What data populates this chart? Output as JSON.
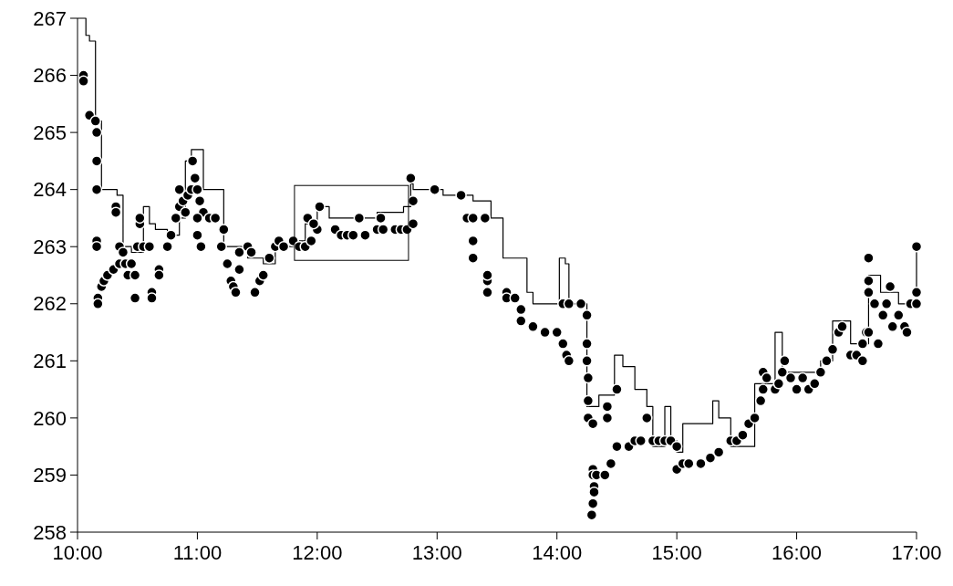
{
  "chart_data": {
    "type": "scatter",
    "xlim": [
      10,
      17
    ],
    "ylim": [
      258,
      267
    ],
    "xticks": [
      {
        "value": 10,
        "label": "10:00"
      },
      {
        "value": 11,
        "label": "11:00"
      },
      {
        "value": 12,
        "label": "12:00"
      },
      {
        "value": 13,
        "label": "13:00"
      },
      {
        "value": 14,
        "label": "14:00"
      },
      {
        "value": 15,
        "label": "15:00"
      },
      {
        "value": 16,
        "label": "16:00"
      },
      {
        "value": 17,
        "label": "17:00"
      }
    ],
    "yticks": [
      258,
      259,
      260,
      261,
      262,
      263,
      264,
      265,
      266,
      267
    ],
    "grid": false,
    "series": [
      {
        "type": "step",
        "color": "#000000",
        "line_style": "solid",
        "x": [
          10.0,
          10.07,
          10.1,
          10.15,
          10.2,
          10.33,
          10.38,
          10.45,
          10.55,
          10.6,
          10.65,
          10.75,
          10.85,
          10.9,
          10.95,
          11.05,
          11.2,
          11.22,
          11.3,
          11.42,
          11.55,
          11.65,
          11.85,
          11.9,
          12.0,
          12.1,
          12.3,
          12.5,
          12.72,
          12.78,
          12.8,
          13.05,
          13.3,
          13.45,
          13.55,
          13.75,
          13.8,
          14.0,
          14.02,
          14.07,
          14.1,
          14.22,
          14.25,
          14.35,
          14.48,
          14.55,
          14.65,
          14.75,
          14.8,
          14.9,
          14.95,
          15.0,
          15.05,
          15.3,
          15.35,
          15.45,
          15.65,
          15.82,
          15.88,
          16.2,
          16.3,
          16.45,
          16.6,
          16.7,
          16.85,
          16.95,
          17.0
        ],
        "values": [
          267,
          266.7,
          266.6,
          265.2,
          264.0,
          263.9,
          263.0,
          262.9,
          263.7,
          263.4,
          263.3,
          263.2,
          263.5,
          264.5,
          264.7,
          264.0,
          264.0,
          263.0,
          263.0,
          262.8,
          262.7,
          263.0,
          263.1,
          263.4,
          263.7,
          263.5,
          263.5,
          263.6,
          263.7,
          264.1,
          264.0,
          263.9,
          263.8,
          263.5,
          262.8,
          262.2,
          262.0,
          262.0,
          262.8,
          262.7,
          262.0,
          262.0,
          260.2,
          260.4,
          261.1,
          260.9,
          260.5,
          260.2,
          259.5,
          260.2,
          259.6,
          259.4,
          259.9,
          260.3,
          260.0,
          259.5,
          260.6,
          261.5,
          260.8,
          261.0,
          261.7,
          261.3,
          262.5,
          262.2,
          262.0,
          262.0,
          263.0
        ]
      },
      {
        "color": "#000000",
        "marker": "circle",
        "x": [
          10.05,
          10.05,
          10.1,
          10.15,
          10.16,
          10.16,
          10.16,
          10.16,
          10.16,
          10.17,
          10.17,
          10.2,
          10.22,
          10.25,
          10.3,
          10.35,
          10.32,
          10.32,
          10.35,
          10.38,
          10.4,
          10.45,
          10.42,
          10.48,
          10.48,
          10.5,
          10.52,
          10.52,
          10.55,
          10.6,
          10.62,
          10.62,
          10.68,
          10.68,
          10.75,
          10.78,
          10.82,
          10.85,
          10.85,
          10.88,
          10.9,
          10.92,
          10.95,
          10.96,
          10.98,
          11.0,
          11.02,
          11.05,
          11.0,
          11.0,
          11.03,
          11.1,
          11.15,
          11.2,
          11.22,
          11.25,
          11.28,
          11.3,
          11.32,
          11.35,
          11.35,
          11.42,
          11.45,
          11.48,
          11.52,
          11.55,
          11.6,
          11.65,
          11.68,
          11.72,
          11.8,
          11.85,
          11.9,
          11.95,
          12.0,
          11.92,
          11.97,
          12.02,
          12.15,
          12.2,
          12.25,
          12.3,
          12.4,
          12.35,
          12.5,
          12.55,
          12.65,
          12.7,
          12.53,
          12.75,
          12.8,
          12.8,
          12.78,
          12.98,
          13.2,
          13.25,
          13.3,
          13.3,
          13.3,
          13.42,
          13.42,
          13.42,
          13.4,
          13.58,
          13.58,
          13.65,
          13.7,
          13.7,
          13.8,
          13.9,
          14.0,
          14.05,
          14.08,
          14.1,
          14.05,
          14.1,
          14.2,
          14.25,
          14.25,
          14.25,
          14.26,
          14.26,
          14.26,
          14.3,
          14.3,
          14.3,
          14.31,
          14.31,
          14.3,
          14.29,
          14.33,
          14.4,
          14.45,
          14.5,
          14.42,
          14.42,
          14.5,
          14.6,
          14.65,
          14.7,
          14.8,
          14.85,
          14.9,
          14.95,
          15.0,
          14.75,
          15.0,
          15.05,
          15.1,
          15.2,
          15.28,
          15.35,
          15.45,
          15.5,
          15.55,
          15.6,
          15.65,
          15.7,
          15.72,
          15.72,
          15.75,
          15.82,
          15.85,
          15.88,
          15.9,
          15.95,
          16.0,
          16.05,
          16.1,
          16.15,
          16.2,
          16.25,
          16.3,
          16.35,
          16.38,
          16.45,
          16.5,
          16.55,
          16.55,
          16.58,
          16.6,
          16.6,
          16.6,
          16.6,
          16.65,
          16.68,
          16.72,
          16.75,
          16.78,
          16.8,
          16.85,
          16.9,
          16.92,
          16.95,
          17.0,
          17.0,
          17.0
        ],
        "values": [
          266.0,
          265.9,
          265.3,
          265.2,
          265.0,
          264.5,
          264.0,
          263.1,
          263.0,
          262.1,
          262.0,
          262.3,
          262.4,
          262.5,
          262.6,
          262.7,
          263.7,
          263.6,
          263.0,
          262.9,
          262.7,
          262.7,
          262.5,
          262.1,
          262.5,
          263.0,
          263.4,
          263.5,
          263.0,
          263.0,
          262.2,
          262.1,
          262.6,
          262.5,
          263.0,
          263.2,
          263.5,
          263.7,
          264.0,
          263.8,
          263.6,
          263.9,
          264.0,
          264.5,
          264.2,
          264.0,
          263.8,
          263.6,
          263.5,
          263.2,
          263.0,
          263.5,
          263.5,
          263.0,
          263.3,
          262.7,
          262.4,
          262.3,
          262.2,
          262.6,
          262.9,
          263.0,
          262.9,
          262.2,
          262.4,
          262.5,
          262.8,
          263.0,
          263.1,
          263.0,
          263.1,
          263.0,
          263.0,
          263.1,
          263.3,
          263.5,
          263.4,
          263.7,
          263.3,
          263.2,
          263.2,
          263.2,
          263.2,
          263.5,
          263.3,
          263.3,
          263.3,
          263.3,
          263.5,
          263.3,
          263.4,
          263.8,
          264.2,
          264.0,
          263.9,
          263.5,
          263.5,
          263.1,
          262.8,
          262.4,
          262.5,
          262.2,
          263.5,
          262.2,
          262.1,
          262.1,
          261.9,
          261.7,
          261.6,
          261.5,
          261.5,
          261.3,
          261.1,
          261.0,
          262.0,
          262.0,
          262.0,
          261.8,
          261.3,
          261.0,
          260.7,
          260.3,
          260.0,
          259.9,
          259.1,
          259.0,
          258.8,
          258.7,
          258.5,
          258.3,
          259.0,
          259.0,
          259.2,
          259.5,
          260.0,
          260.2,
          260.5,
          259.5,
          259.6,
          259.6,
          259.6,
          259.6,
          259.6,
          259.6,
          259.5,
          260.0,
          259.1,
          259.2,
          259.2,
          259.2,
          259.3,
          259.4,
          259.6,
          259.6,
          259.7,
          259.9,
          260.0,
          260.3,
          260.5,
          260.8,
          260.7,
          260.5,
          260.6,
          260.8,
          261.0,
          260.7,
          260.5,
          260.7,
          260.5,
          260.6,
          260.8,
          261.0,
          261.2,
          261.5,
          261.6,
          261.1,
          261.1,
          261.3,
          261.0,
          261.5,
          262.2,
          262.4,
          262.8,
          261.5,
          262.0,
          261.3,
          261.8,
          262.0,
          262.3,
          261.6,
          261.8,
          261.6,
          261.5,
          262.0,
          262.0,
          262.2,
          263.0
        ]
      }
    ]
  }
}
